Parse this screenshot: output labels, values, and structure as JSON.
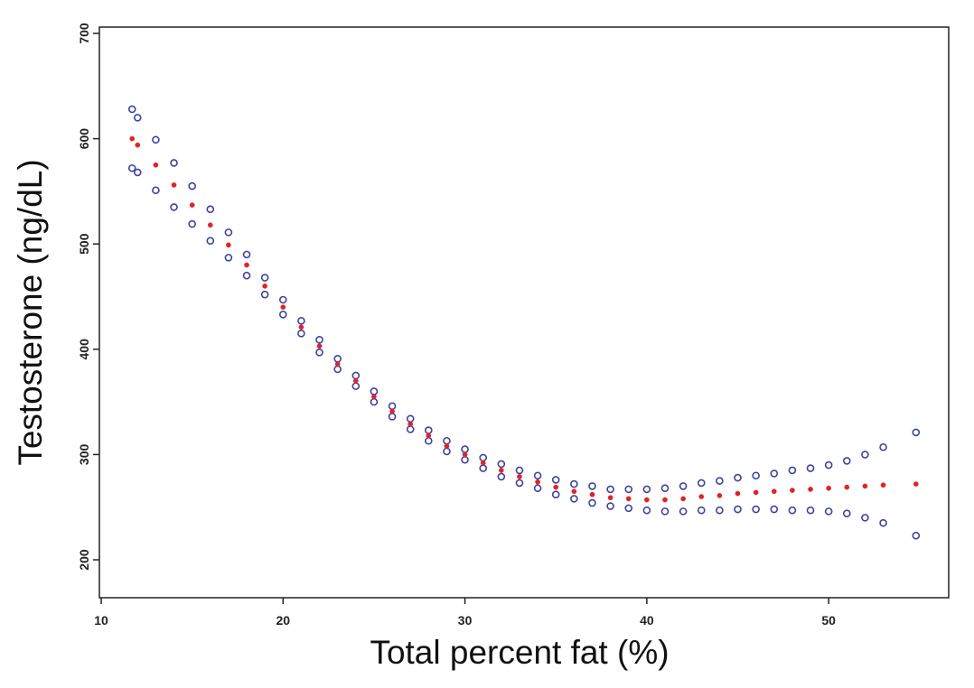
{
  "chart_data": {
    "type": "scatter",
    "x_label": "Total percent fat (%)",
    "y_label": "Testosterone (ng/dL)",
    "x": [
      11.7,
      12,
      13,
      14,
      15,
      16,
      17,
      18,
      19,
      20,
      21,
      22,
      23,
      24,
      25,
      26,
      27,
      28,
      29,
      30,
      31,
      32,
      33,
      34,
      35,
      36,
      37,
      38,
      39,
      40,
      41,
      42,
      43,
      44,
      45,
      46,
      47,
      48,
      49,
      50,
      51,
      52,
      53,
      54.8
    ],
    "series": [
      {
        "color": "#3d43a0",
        "marker": "open",
        "values": [
          628,
          620,
          599,
          577,
          555,
          533,
          511,
          490,
          468,
          447,
          427,
          409,
          391,
          375,
          360,
          346,
          334,
          323,
          313,
          305,
          297,
          291,
          285,
          280,
          276,
          272,
          270,
          267,
          267,
          267,
          268,
          270,
          273,
          275,
          278,
          280,
          282,
          285,
          287,
          290,
          294,
          300,
          307,
          321
        ]
      },
      {
        "color": "#3d43a0",
        "marker": "open",
        "values": [
          572,
          568,
          551,
          535,
          519,
          503,
          487,
          470,
          452,
          433,
          415,
          397,
          381,
          365,
          350,
          336,
          324,
          313,
          303,
          295,
          287,
          279,
          273,
          268,
          262,
          258,
          254,
          251,
          249,
          247,
          246,
          246,
          247,
          247,
          248,
          248,
          248,
          247,
          247,
          246,
          244,
          240,
          235,
          223
        ]
      },
      {
        "color": "#e02424",
        "marker": "filled",
        "values": [
          600,
          594,
          575,
          556,
          537,
          518,
          499,
          480,
          460,
          440,
          421,
          403,
          386,
          370,
          355,
          341,
          329,
          318,
          308,
          300,
          292,
          285,
          279,
          274,
          269,
          265,
          262,
          259,
          258,
          257,
          257,
          258,
          260,
          261,
          263,
          264,
          265,
          266,
          267,
          268,
          269,
          270,
          271,
          272
        ]
      }
    ],
    "xlim": [
      9.9,
      56.6
    ],
    "ylim": [
      164,
      706
    ],
    "xticks": [
      10,
      20,
      30,
      40,
      50
    ],
    "yticks": [
      200,
      300,
      400,
      500,
      600,
      700
    ]
  }
}
